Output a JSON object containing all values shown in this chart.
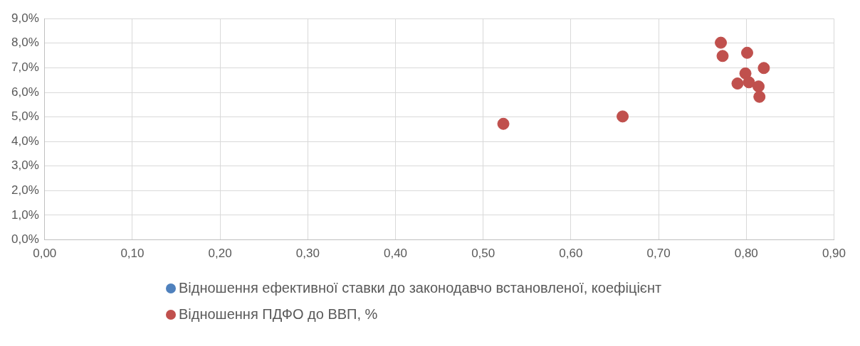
{
  "chart_data": {
    "type": "scatter",
    "xlim": [
      0,
      0.9
    ],
    "xticks": [
      {
        "value": 0,
        "label": "0,00"
      },
      {
        "value": 0.1,
        "label": "0,10"
      },
      {
        "value": 0.2,
        "label": "0,20"
      },
      {
        "value": 0.3,
        "label": "0,30"
      },
      {
        "value": 0.4,
        "label": "0,40"
      },
      {
        "value": 0.5,
        "label": "0,50"
      },
      {
        "value": 0.6,
        "label": "0,60"
      },
      {
        "value": 0.7,
        "label": "0,70"
      },
      {
        "value": 0.8,
        "label": "0,80"
      },
      {
        "value": 0.9,
        "label": "0,90"
      }
    ],
    "ylim": [
      0,
      9
    ],
    "yticks": [
      {
        "value": 0,
        "label": "0,0%"
      },
      {
        "value": 1,
        "label": "1,0%"
      },
      {
        "value": 2,
        "label": "2,0%"
      },
      {
        "value": 3,
        "label": "3,0%"
      },
      {
        "value": 4,
        "label": "4,0%"
      },
      {
        "value": 5,
        "label": "5,0%"
      },
      {
        "value": 6,
        "label": "6,0%"
      },
      {
        "value": 7,
        "label": "7,0%"
      },
      {
        "value": 8,
        "label": "8,0%"
      },
      {
        "value": 9,
        "label": "9,0%"
      }
    ],
    "grid": true,
    "legend": "bottom",
    "marker": "circle",
    "series": [
      {
        "name": "Відношення ефективної ставки до законодавчо встановленої, коефіцієнт",
        "color": "#4f81bd"
      },
      {
        "name": "Відношення ПДФО до ВВП, %",
        "color": "#c0504d",
        "x": [
          0.523,
          0.659,
          0.771,
          0.773,
          0.801,
          0.799,
          0.79,
          0.803,
          0.814,
          0.82,
          0.815
        ],
        "values": [
          4.72,
          5.02,
          8.02,
          7.48,
          7.61,
          6.77,
          6.36,
          6.41,
          6.24,
          6.99,
          5.82
        ]
      }
    ]
  }
}
